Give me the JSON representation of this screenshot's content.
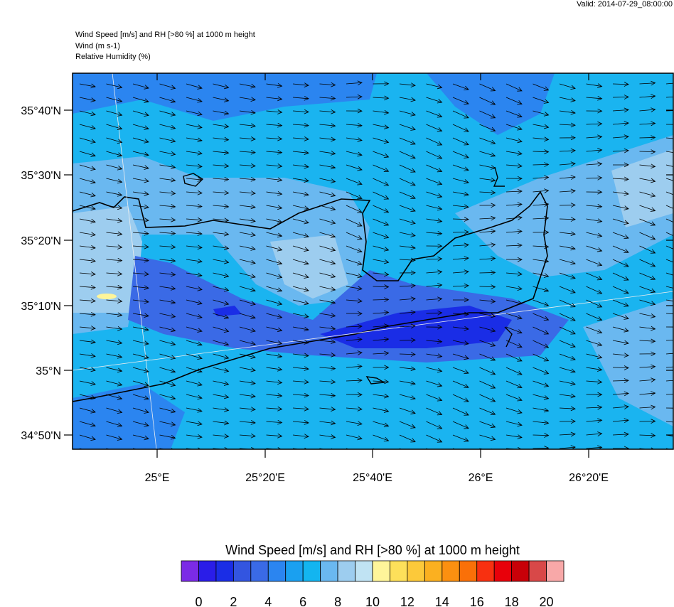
{
  "header": {
    "valid": "Valid: 2014-07-29_08:00:00",
    "title_lines": [
      "Wind Speed [m/s] and RH [>80 %] at 1000 m height",
      "Wind   (m s-1)",
      "Relative Humidity   (%)"
    ]
  },
  "map": {
    "lat_labels": [
      "35°40'N",
      "35°30'N",
      "35°20'N",
      "35°10'N",
      "35°N",
      "34°50'N"
    ],
    "lon_labels": [
      "25°E",
      "25°20'E",
      "25°40'E",
      "26°E",
      "26°20'E"
    ]
  },
  "colorbar": {
    "title": "Wind Speed [m/s] and RH [>80 %] at 1000 m height",
    "colors": [
      "#7b2be6",
      "#2a1de8",
      "#1a2de6",
      "#3355e0",
      "#3a6ae6",
      "#2b85f0",
      "#1aa0f0",
      "#13b5f0",
      "#6ab8f0",
      "#9dcdef",
      "#c0e3f3",
      "#fef59a",
      "#fde05a",
      "#fcc93a",
      "#fbb020",
      "#fb9010",
      "#fa7008",
      "#f83010",
      "#e8000a",
      "#c80008",
      "#d84848",
      "#f8a8a8"
    ],
    "labels": [
      0,
      2,
      4,
      6,
      8,
      10,
      12,
      14,
      16,
      18,
      20
    ]
  }
}
